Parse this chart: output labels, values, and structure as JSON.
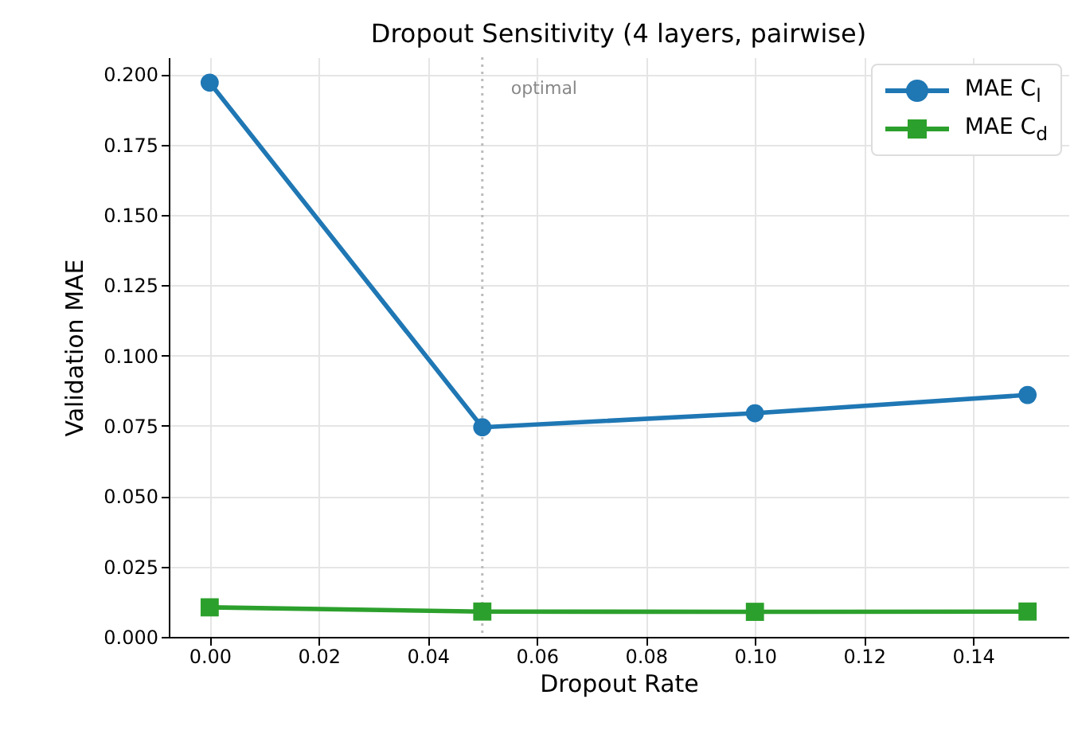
{
  "chart_data": {
    "type": "line",
    "title": "Dropout Sensitivity (4 layers, pairwise)",
    "xlabel": "Dropout Rate",
    "ylabel": "Validation MAE",
    "x": [
      0.0,
      0.05,
      0.1,
      0.15
    ],
    "series": [
      {
        "name": "MAE C$_{l}$",
        "color": "#1f77b4",
        "marker": "circle",
        "values": [
          0.197,
          0.0745,
          0.0795,
          0.086
        ]
      },
      {
        "name": "MAE C$_{d}$",
        "color": "#2ca02c",
        "marker": "square",
        "values": [
          0.0105,
          0.009,
          0.0089,
          0.009
        ]
      }
    ],
    "xlim": [
      -0.0075,
      0.1575
    ],
    "ylim": [
      0,
      0.206
    ],
    "xticks": [
      {
        "value": 0,
        "label": "0.00"
      },
      {
        "value": 0.02,
        "label": "0.02"
      },
      {
        "value": 0.04,
        "label": "0.04"
      },
      {
        "value": 0.06,
        "label": "0.06"
      },
      {
        "value": 0.08,
        "label": "0.08"
      },
      {
        "value": 0.1,
        "label": "0.10"
      },
      {
        "value": 0.12,
        "label": "0.12"
      },
      {
        "value": 0.14,
        "label": "0.14"
      }
    ],
    "yticks": [
      {
        "value": 0,
        "label": "0.000"
      },
      {
        "value": 0.025,
        "label": "0.025"
      },
      {
        "value": 0.05,
        "label": "0.050"
      },
      {
        "value": 0.075,
        "label": "0.075"
      },
      {
        "value": 0.1,
        "label": "0.100"
      },
      {
        "value": 0.125,
        "label": "0.125"
      },
      {
        "value": 0.15,
        "label": "0.150"
      },
      {
        "value": 0.175,
        "label": "0.175"
      },
      {
        "value": 0.2,
        "label": "0.200"
      }
    ],
    "ref_lines": [
      {
        "axis": "x",
        "value": 0.05,
        "label": "optimal",
        "color": "#bbbbbb",
        "line_style": "dotted"
      }
    ],
    "grid": true,
    "legend": "top right",
    "line_style": "solid"
  }
}
